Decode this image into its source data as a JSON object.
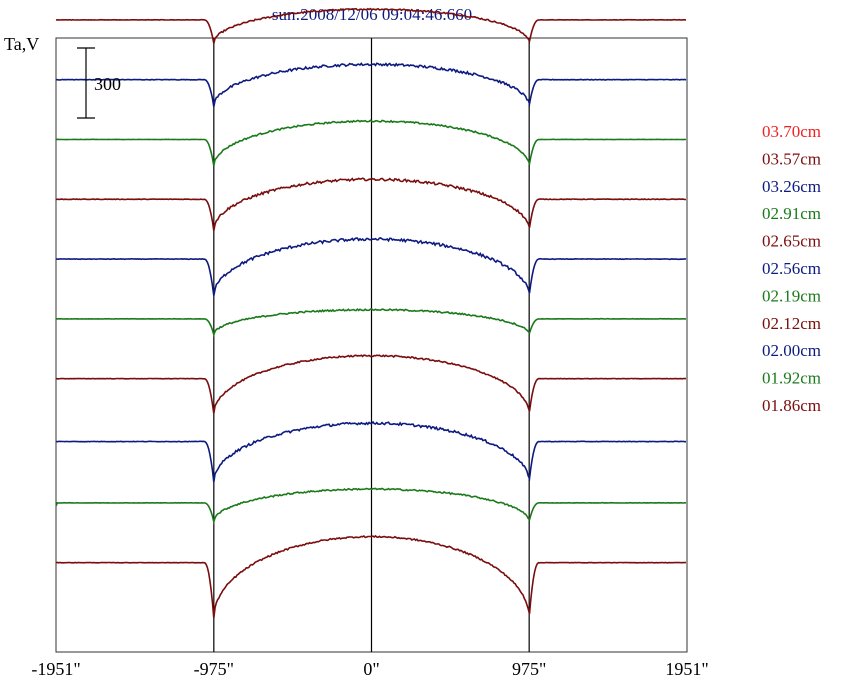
{
  "chart_data": {
    "type": "line",
    "title": "sun:2008/12/06 09:04:46.660",
    "ylabel": "Ta,V",
    "scale_bar_label": "300",
    "x_ticks": [
      {
        "value": -1951,
        "label": "-1951\""
      },
      {
        "value": -975,
        "label": "-975\""
      },
      {
        "value": 0,
        "label": "0\""
      },
      {
        "value": 975,
        "label": "975\""
      },
      {
        "value": 1951,
        "label": "1951\""
      }
    ],
    "xlim": [
      -1951,
      1951
    ],
    "vertical_lines": [
      -975,
      0,
      975
    ],
    "scale_bar_units": 300,
    "legend_position": "right",
    "grid": false,
    "series": [
      {
        "name": "03.70cm",
        "color": "#ee2222",
        "baseline": 4030,
        "dip": 130,
        "center_rise": 110,
        "noise": 4,
        "end_drop": 0
      },
      {
        "name": "03.57cm",
        "color": "#7a0d0d",
        "baseline": 3640,
        "dip": 150,
        "center_rise": 70,
        "noise": 5,
        "end_drop": 0
      },
      {
        "name": "03.26cm",
        "color": "#0d1a80",
        "baseline": 3250,
        "dip": 170,
        "center_rise": 100,
        "noise": 8,
        "end_drop": 0
      },
      {
        "name": "02.91cm",
        "color": "#1a7a1a",
        "baseline": 2860,
        "dip": 170,
        "center_rise": 120,
        "noise": 5,
        "end_drop": 0
      },
      {
        "name": "02.65cm",
        "color": "#7a0d0d",
        "baseline": 2470,
        "dip": 200,
        "center_rise": 130,
        "noise": 8,
        "end_drop": 0
      },
      {
        "name": "02.56cm",
        "color": "#0d1a80",
        "baseline": 2080,
        "dip": 240,
        "center_rise": 130,
        "noise": 9,
        "end_drop": 0
      },
      {
        "name": "02.19cm",
        "color": "#1a7a1a",
        "baseline": 1690,
        "dip": 100,
        "center_rise": 60,
        "noise": 5,
        "end_drop": 0
      },
      {
        "name": "02.12cm",
        "color": "#7a0d0d",
        "baseline": 1300,
        "dip": 230,
        "center_rise": 150,
        "noise": 5,
        "end_drop": 0
      },
      {
        "name": "02.00cm",
        "color": "#0d1a80",
        "baseline": 890,
        "dip": 260,
        "center_rise": 120,
        "noise": 8,
        "end_drop": 0
      },
      {
        "name": "01.92cm",
        "color": "#1a7a1a",
        "baseline": 490,
        "dip": 120,
        "center_rise": 90,
        "noise": 5,
        "end_drop": 20
      },
      {
        "name": "01.86cm",
        "color": "#7a0d0d",
        "baseline": 100,
        "dip": 360,
        "center_rise": 170,
        "noise": 5,
        "end_drop": 0
      }
    ]
  }
}
